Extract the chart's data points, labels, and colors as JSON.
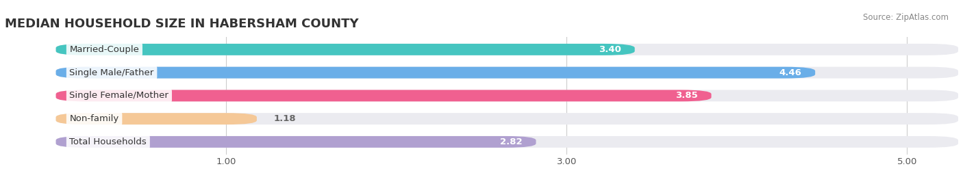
{
  "title": "MEDIAN HOUSEHOLD SIZE IN HABERSHAM COUNTY",
  "source": "Source: ZipAtlas.com",
  "categories": [
    "Married-Couple",
    "Single Male/Father",
    "Single Female/Mother",
    "Non-family",
    "Total Households"
  ],
  "values": [
    3.4,
    4.46,
    3.85,
    1.18,
    2.82
  ],
  "bar_colors": [
    "#45c5c0",
    "#6aaee8",
    "#f06090",
    "#f5c897",
    "#b0a0d0"
  ],
  "xlim_left": -0.3,
  "xlim_right": 5.3,
  "xticks": [
    1.0,
    3.0,
    5.0
  ],
  "xticklabels": [
    "1.00",
    "3.00",
    "5.00"
  ],
  "value_label_color_inside": "#ffffff",
  "value_label_color_outside": "#666666",
  "bar_height": 0.68,
  "background_color": "#ffffff",
  "bar_background_color": "#ebebf0",
  "title_fontsize": 13,
  "label_fontsize": 9.5,
  "value_fontsize": 9.5,
  "source_fontsize": 8.5
}
